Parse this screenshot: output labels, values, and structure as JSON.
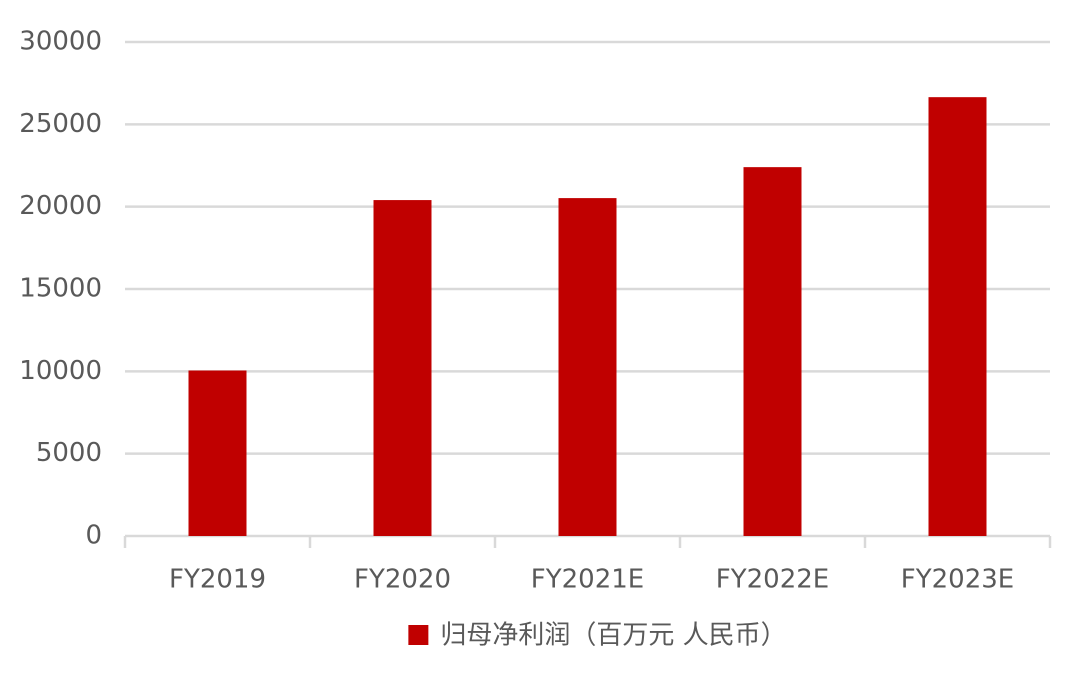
{
  "chart_data": {
    "type": "bar",
    "categories": [
      "FY2019",
      "FY2020",
      "FY2021E",
      "FY2022E",
      "FY2023E"
    ],
    "series": [
      {
        "name": "归母净利润（百万元 人民币）",
        "color": "#c00000",
        "values": [
          10050,
          20400,
          20520,
          22400,
          26650
        ]
      }
    ],
    "ylim": [
      0,
      30000
    ],
    "yticks": [
      0,
      5000,
      10000,
      15000,
      20000,
      25000,
      30000
    ],
    "grid": true,
    "legend": "bottom"
  }
}
